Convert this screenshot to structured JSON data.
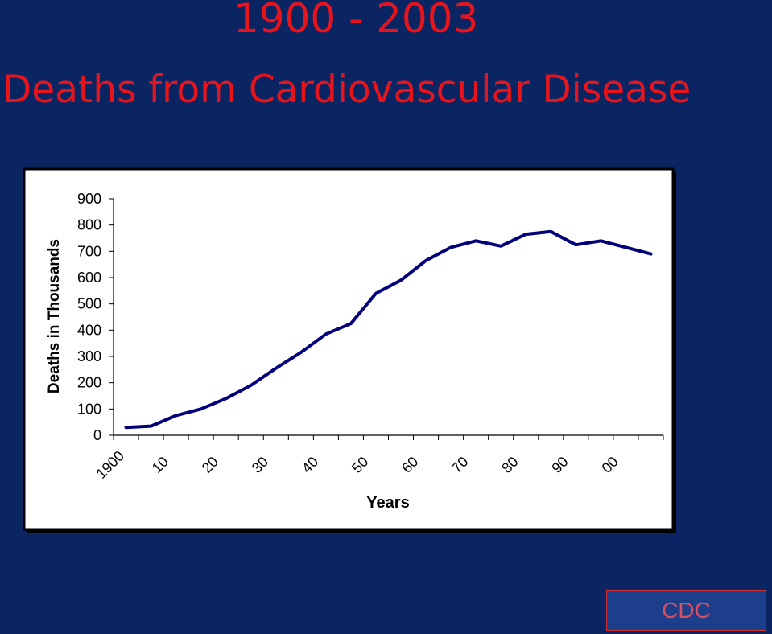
{
  "slide": {
    "title_line1": "1900 - 2003",
    "title_line2": "Deaths from Cardiovascular Disease",
    "source_box": "CDC"
  },
  "colors": {
    "background": "#0b2563",
    "title": "#e8141c",
    "line": "#00007a"
  },
  "chart_data": {
    "type": "line",
    "xlabel": "Years",
    "ylabel": "Deaths in Thousands",
    "ylim": [
      0,
      900
    ],
    "y_ticks": [
      "0",
      "100",
      "200",
      "300",
      "400",
      "500",
      "600",
      "700",
      "800",
      "900"
    ],
    "x_tick_labels": [
      "1900",
      "10",
      "20",
      "30",
      "40",
      "50",
      "60",
      "70",
      "80",
      "90",
      "00"
    ],
    "x": [
      1900,
      1905,
      1910,
      1915,
      1920,
      1925,
      1930,
      1935,
      1940,
      1945,
      1950,
      1955,
      1960,
      1965,
      1970,
      1975,
      1980,
      1985,
      1990,
      1995,
      2000,
      2003
    ],
    "values": [
      30,
      35,
      75,
      100,
      140,
      190,
      255,
      315,
      385,
      425,
      540,
      590,
      665,
      715,
      740,
      720,
      765,
      775,
      725,
      740,
      715,
      690
    ],
    "grid": false,
    "legend": "none"
  }
}
